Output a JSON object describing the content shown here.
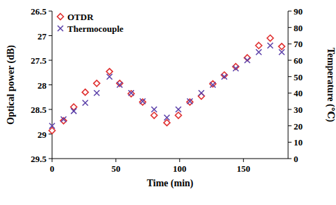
{
  "chart_data": {
    "type": "scatter",
    "x_label": "Time (min)",
    "y_label": "Optical power (dB)",
    "y2_label": "Temperature (℃)",
    "x": [
      0,
      9,
      17,
      26,
      35,
      45,
      53,
      62,
      71,
      80,
      90,
      99,
      108,
      117,
      126,
      135,
      144,
      153,
      162,
      171,
      180
    ],
    "series": [
      {
        "name": "OTDR",
        "color": "#e03030",
        "marker": "diamond",
        "values": [
          28.93,
          28.73,
          28.45,
          28.15,
          27.97,
          27.73,
          27.97,
          28.18,
          28.35,
          28.62,
          28.77,
          28.62,
          28.35,
          28.23,
          27.98,
          27.8,
          27.63,
          27.45,
          27.2,
          27.05,
          27.22
        ]
      },
      {
        "name": "Thermocouple",
        "color": "#5a3fa8",
        "marker": "x",
        "axis": "y2",
        "values": [
          20,
          24,
          29,
          34,
          40,
          50,
          45,
          40,
          35,
          30,
          25,
          30,
          35,
          40,
          45,
          50,
          55,
          60,
          65,
          69,
          65
        ]
      }
    ],
    "xlim": [
      0,
      185
    ],
    "xticks": [
      0,
      50,
      100,
      150
    ],
    "ylim": [
      29.5,
      26.5
    ],
    "yticks": [
      26.5,
      27,
      27.5,
      28,
      28.5,
      29,
      29.5
    ],
    "y2lim": [
      0,
      90
    ],
    "y2ticks": [
      0,
      10,
      20,
      30,
      40,
      50,
      60,
      70,
      80,
      90
    ],
    "legend": "top-left",
    "grid": false
  }
}
